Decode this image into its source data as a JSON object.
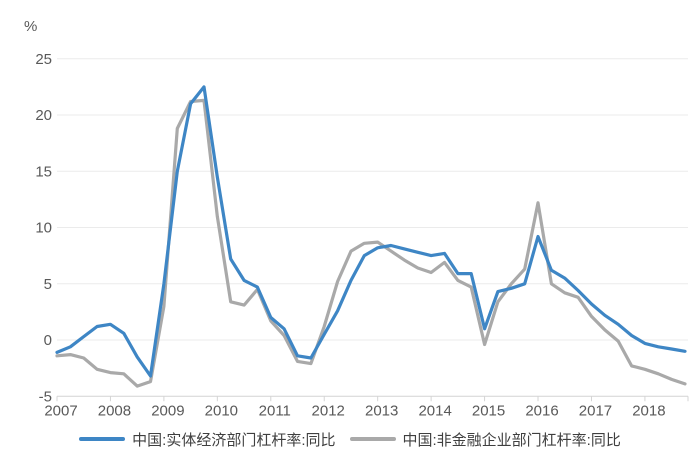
{
  "axis": {
    "unit_label": "%",
    "y_ticks": [
      25,
      20,
      15,
      10,
      5,
      0,
      -5
    ],
    "x_year_labels": [
      "2007",
      "2008",
      "2009",
      "2010",
      "2011",
      "2012",
      "2013",
      "2014",
      "2015",
      "2016",
      "2017",
      "2018"
    ]
  },
  "colors": {
    "series_blue": "#3E86C5",
    "series_gray": "#A9A9A9",
    "gridline": "#ebebeb",
    "axis_line": "#d4d4d4",
    "tick_label": "#595959",
    "legend_text": "#3f3f3f"
  },
  "legend": {
    "items": [
      {
        "label": "中国:实体经济部门杠杆率:同比",
        "color": "#3E86C5"
      },
      {
        "label": "中国:非金融企业部门杠杆率:同比",
        "color": "#A9A9A9"
      }
    ]
  },
  "chart_data": {
    "type": "line",
    "title": "",
    "xlabel": "",
    "ylabel": "%",
    "ylim": [
      -5,
      25
    ],
    "grid": true,
    "legend_position": "bottom",
    "x_start_year": 2007,
    "x_frequency": "quarterly",
    "x_year_labels": [
      "2007",
      "2008",
      "2009",
      "2010",
      "2011",
      "2012",
      "2013",
      "2014",
      "2015",
      "2016",
      "2017",
      "2018"
    ],
    "series": [
      {
        "name": "中国:实体经济部门杠杆率:同比",
        "color": "#3E86C5",
        "values": [
          -1.1,
          -0.6,
          0.3,
          1.2,
          1.4,
          0.6,
          -1.5,
          -3.2,
          5.0,
          15.0,
          21.0,
          22.5,
          14.5,
          7.2,
          5.3,
          4.7,
          2.0,
          1.0,
          -1.4,
          -1.6,
          0.5,
          2.6,
          5.3,
          7.5,
          8.2,
          8.4,
          8.1,
          7.8,
          7.5,
          7.7,
          5.9,
          5.9,
          1.0,
          4.3,
          4.6,
          5.0,
          9.2,
          6.2,
          5.5,
          4.4,
          3.2,
          2.2,
          1.4,
          0.4,
          -0.3,
          -0.6,
          -0.8,
          -1.0
        ]
      },
      {
        "name": "中国:非金融企业部门杠杆率:同比",
        "color": "#A9A9A9",
        "values": [
          -1.4,
          -1.3,
          -1.6,
          -2.6,
          -2.9,
          -3.0,
          -4.1,
          -3.7,
          3.0,
          18.8,
          21.2,
          21.3,
          11.0,
          3.4,
          3.1,
          4.5,
          1.7,
          0.4,
          -1.9,
          -2.1,
          1.2,
          5.2,
          7.9,
          8.6,
          8.7,
          7.9,
          7.1,
          6.4,
          6.0,
          6.9,
          5.3,
          4.7,
          -0.4,
          3.4,
          5.0,
          6.3,
          12.2,
          5.0,
          4.2,
          3.8,
          2.1,
          0.9,
          -0.1,
          -2.3,
          -2.6,
          -3.0,
          -3.5,
          -3.9
        ]
      }
    ]
  }
}
